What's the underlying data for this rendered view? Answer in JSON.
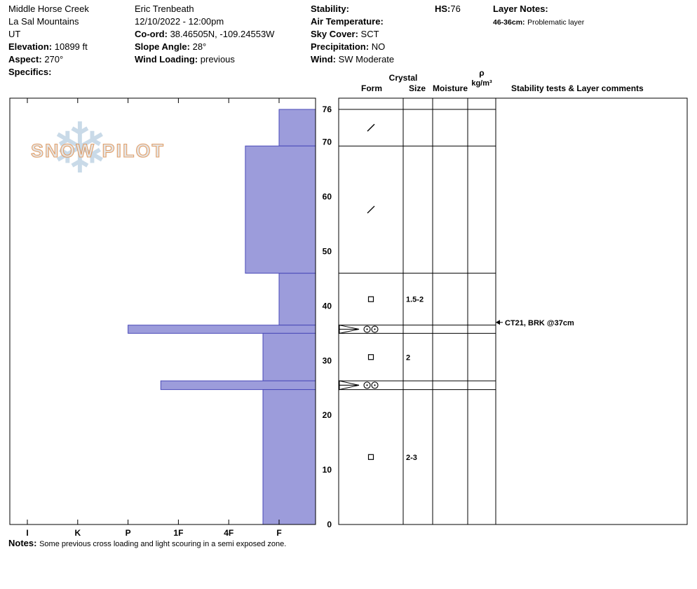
{
  "header": {
    "site": {
      "name": "Middle Horse Creek",
      "range": "La Sal Mountains",
      "state": "UT",
      "elevation_label": "Elevation:",
      "elevation_value": "10899 ft",
      "aspect_label": "Aspect:",
      "aspect_value": "270°",
      "specifics_label": "Specifics:"
    },
    "observer": {
      "name": "Eric Trenbeath",
      "datetime": "12/10/2022 - 12:00pm",
      "coord_label": "Co-ord:",
      "coord_value": "38.46505N, -109.24553W",
      "slope_angle_label": "Slope Angle:",
      "slope_angle_value": "28°",
      "wind_loading_label": "Wind Loading:",
      "wind_loading_value": "previous"
    },
    "conditions": {
      "stability_label": "Stability:",
      "stability_value": "",
      "air_temp_label": "Air Temperature:",
      "air_temp_value": "",
      "sky_cover_label": "Sky Cover:",
      "sky_cover_value": "SCT",
      "precipitation_label": "Precipitation:",
      "precipitation_value": "NO",
      "wind_label": "Wind:",
      "wind_value": "SW Moderate"
    },
    "hs_label": "HS:",
    "hs_value": "76",
    "layer_notes_label": "Layer Notes:",
    "layer_note_range": "46-36cm:",
    "layer_note_text": "Problematic layer"
  },
  "watermark": {
    "snowflake_glyph": "❄",
    "text": "SNOW PILOT"
  },
  "table_headers": {
    "crystal": "Crystal",
    "form": "Form",
    "size": "Size",
    "moisture": "Moisture",
    "density_symbol": "ρ",
    "density_units": "kg/m³",
    "comments": "Stability tests & Layer comments"
  },
  "annotations": [
    {
      "depth_cm": 37,
      "text": "CT21, BRK @37cm"
    }
  ],
  "footer": {
    "notes_label": "Notes:",
    "notes_text": "Some previous cross loading and light scouring in a semi exposed zone."
  },
  "chart_data": {
    "type": "bar",
    "title": "Snow pit hardness profile",
    "orientation": "horizontal",
    "depth_axis": {
      "unit": "cm",
      "min": 0,
      "max": 76,
      "ticks": [
        76,
        70,
        60,
        50,
        40,
        30,
        20,
        10,
        0
      ]
    },
    "hardness_axis": {
      "ticks_left_to_right": [
        "I",
        "K",
        "P",
        "1F",
        "4F",
        "F"
      ],
      "note": "hardness decreases left to right; bars grow leftward from F edge"
    },
    "bar_fill": "#9c9cdb",
    "bar_stroke": "#4a4ab8",
    "total_depth_cm": 76,
    "layers": [
      {
        "top_cm": 76,
        "bottom_cm": 69.3,
        "hardness": "F",
        "hardness_value": 1.0,
        "grain_form": "slash",
        "grain_size": ""
      },
      {
        "top_cm": 69.3,
        "bottom_cm": 46,
        "hardness": "F-4F",
        "hardness_value": 1.67,
        "grain_form": "slash",
        "grain_size": ""
      },
      {
        "top_cm": 46,
        "bottom_cm": 36.5,
        "hardness": "F",
        "hardness_value": 1.0,
        "grain_form": "square",
        "grain_size": "1.5-2"
      },
      {
        "top_cm": 36.5,
        "bottom_cm": 35,
        "hardness": "P",
        "hardness_value": 4.0,
        "grain_form": "double-circle",
        "grain_size": ""
      },
      {
        "top_cm": 35,
        "bottom_cm": 26.3,
        "hardness": "F+",
        "hardness_value": 1.32,
        "grain_form": "square",
        "grain_size": "2"
      },
      {
        "top_cm": 26.3,
        "bottom_cm": 24.7,
        "hardness": "1F-P",
        "hardness_value": 3.35,
        "grain_form": "double-circle",
        "grain_size": ""
      },
      {
        "top_cm": 24.7,
        "bottom_cm": 0,
        "hardness": "F+",
        "hardness_value": 1.32,
        "grain_form": "square",
        "grain_size": "2-3"
      }
    ],
    "weak_layer_marks": [
      {
        "top_cm": 36.5,
        "bottom_cm": 35
      },
      {
        "top_cm": 26.3,
        "bottom_cm": 24.7
      }
    ]
  }
}
